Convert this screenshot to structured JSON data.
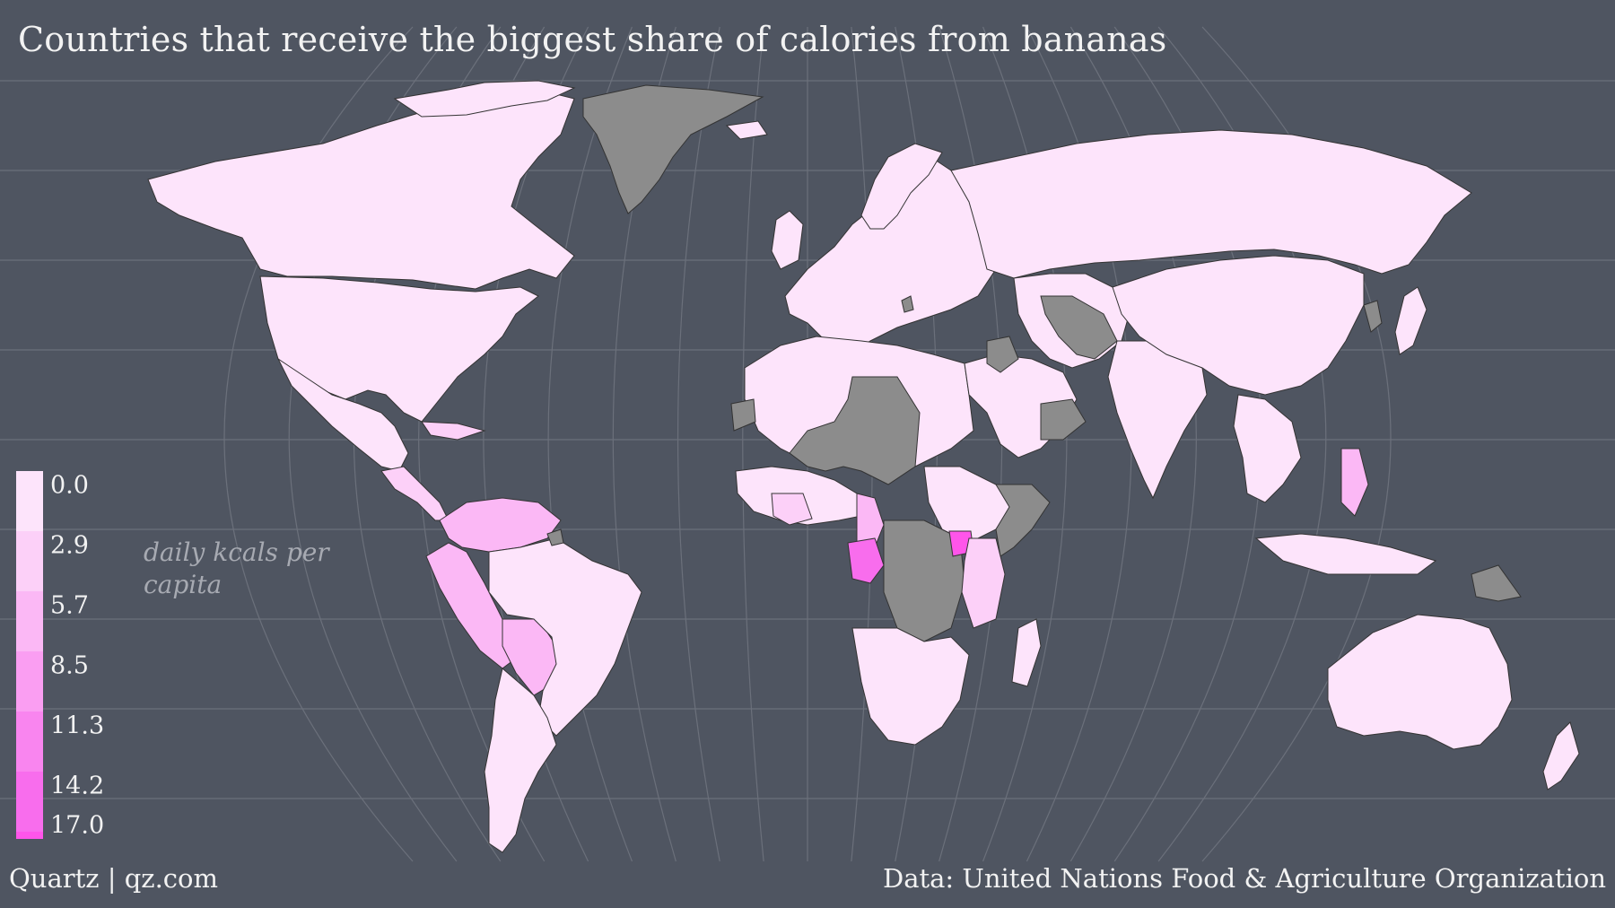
{
  "title": "Countries that receive the biggest share of calories from bananas",
  "legend": {
    "unit_label": "daily kcals per capita",
    "ticks": [
      "0.0",
      "2.9",
      "5.7",
      "8.5",
      "11.3",
      "14.2",
      "17.0"
    ],
    "colors": [
      "#fde4fb",
      "#fcd0f8",
      "#fbb8f5",
      "#fa9ef2",
      "#f985ef",
      "#f86ded",
      "#ff55ea"
    ]
  },
  "colors": {
    "background": "#4f5561",
    "graticule": "#6b707b",
    "no_data": "#8c8c8c",
    "border": "#333333"
  },
  "credit": "Quartz | qz.com",
  "source": "Data: United Nations Food & Agriculture Organization"
}
